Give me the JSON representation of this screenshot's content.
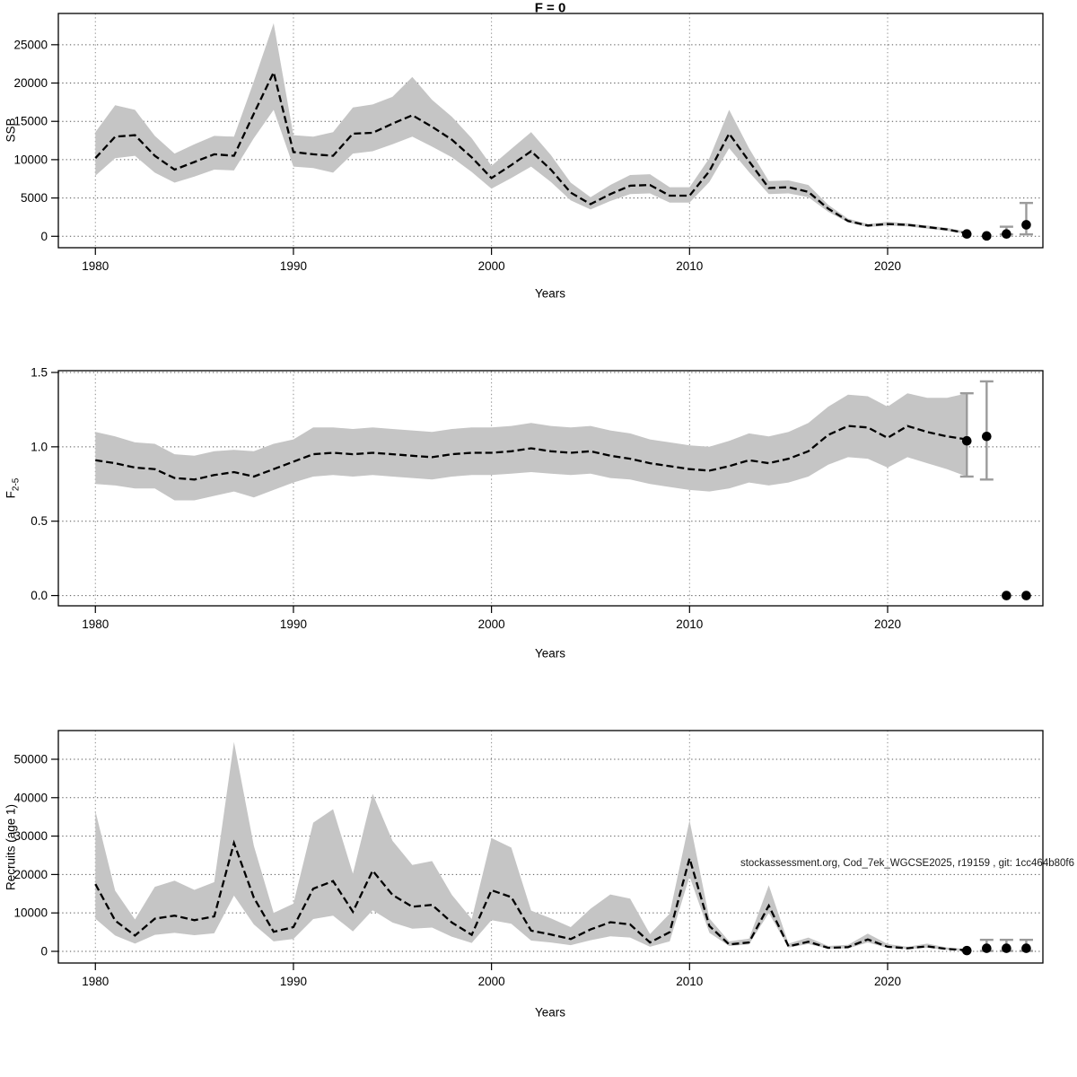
{
  "title": "F = 0",
  "watermark": "stockassessment.org, Cod_7ek_WGCSE2025, r19159 , git: 1cc464b80f6",
  "colors": {
    "band": "#c5c5c5",
    "line": "#000000",
    "grid_h": "#555555",
    "grid_v": "#888888",
    "axis": "#000000",
    "errorbar": "#9b9b9b",
    "point": "#000000"
  },
  "chart_data": [
    {
      "type": "line",
      "title": "F = 0",
      "ylabel": "SSB",
      "ylabel_sub": "",
      "xlabel": "Years",
      "xlim": [
        1978.13,
        2027.84
      ],
      "ylim": [
        -1490,
        29080
      ],
      "xticks": [
        1980,
        1990,
        2000,
        2010,
        2020
      ],
      "yticks": [
        0,
        5000,
        10000,
        15000,
        20000,
        25000
      ],
      "ytick_labels": [
        "0",
        "5000",
        "10000",
        "15000",
        "20000",
        "25000"
      ],
      "grid": true,
      "x": [
        1980,
        1981,
        1982,
        1983,
        1984,
        1985,
        1986,
        1987,
        1988,
        1989,
        1990,
        1991,
        1992,
        1993,
        1994,
        1995,
        1996,
        1997,
        1998,
        1999,
        2000,
        2001,
        2002,
        2003,
        2004,
        2005,
        2006,
        2007,
        2008,
        2009,
        2010,
        2011,
        2012,
        2013,
        2014,
        2015,
        2016,
        2017,
        2018,
        2019,
        2020,
        2021,
        2022,
        2023,
        2024
      ],
      "values": [
        10200,
        13000,
        13200,
        10500,
        8700,
        9700,
        10700,
        10500,
        16000,
        21400,
        11000,
        10700,
        10500,
        13400,
        13500,
        14700,
        15800,
        14300,
        12600,
        10300,
        7600,
        9300,
        11100,
        8700,
        5700,
        4200,
        5500,
        6600,
        6700,
        5300,
        5300,
        8500,
        13400,
        9800,
        6300,
        6400,
        5800,
        3600,
        2000,
        1400,
        1600,
        1500,
        1200,
        900,
        400
      ],
      "band_lo": [
        7900,
        10200,
        10500,
        8300,
        7000,
        7800,
        8700,
        8600,
        12800,
        16500,
        9100,
        8900,
        8300,
        10800,
        11100,
        12000,
        13000,
        11700,
        10300,
        8400,
        6200,
        7600,
        9100,
        7100,
        4700,
        3500,
        4600,
        5500,
        5600,
        4400,
        4400,
        7100,
        11500,
        8400,
        5500,
        5600,
        5100,
        3200,
        1800,
        1200,
        1400,
        1300,
        1000,
        700,
        300
      ],
      "band_hi": [
        13600,
        17100,
        16500,
        13100,
        10800,
        12000,
        13100,
        13000,
        20200,
        27800,
        13200,
        13000,
        13600,
        16800,
        17200,
        18200,
        20800,
        17800,
        15600,
        12800,
        9200,
        11400,
        13600,
        10600,
        7000,
        5100,
        6700,
        8000,
        8100,
        6400,
        6400,
        10200,
        16500,
        11500,
        7200,
        7300,
        6700,
        4100,
        2300,
        1600,
        1900,
        1700,
        1400,
        1100,
        600
      ],
      "points": {
        "x": [
          2024,
          2025,
          2026,
          2027
        ],
        "y": [
          300,
          50,
          300,
          1500
        ]
      },
      "error_bars": [
        {
          "x": 2026,
          "lo": 250,
          "hi": 1250
        },
        {
          "x": 2027,
          "lo": 250,
          "hi": 4350
        }
      ]
    },
    {
      "type": "line",
      "title": "",
      "ylabel": "F",
      "ylabel_sub": "2-5",
      "xlabel": "Years",
      "xlim": [
        1978.13,
        2027.84
      ],
      "ylim": [
        -0.069,
        1.512
      ],
      "xticks": [
        1980,
        1990,
        2000,
        2010,
        2020
      ],
      "yticks": [
        0.0,
        0.5,
        1.0,
        1.5
      ],
      "ytick_labels": [
        "0.0",
        "0.5",
        "1.0",
        "1.5"
      ],
      "grid": true,
      "x": [
        1980,
        1981,
        1982,
        1983,
        1984,
        1985,
        1986,
        1987,
        1988,
        1989,
        1990,
        1991,
        1992,
        1993,
        1994,
        1995,
        1996,
        1997,
        1998,
        1999,
        2000,
        2001,
        2002,
        2003,
        2004,
        2005,
        2006,
        2007,
        2008,
        2009,
        2010,
        2011,
        2012,
        2013,
        2014,
        2015,
        2016,
        2017,
        2018,
        2019,
        2020,
        2021,
        2022,
        2023,
        2024
      ],
      "values": [
        0.91,
        0.89,
        0.86,
        0.85,
        0.79,
        0.78,
        0.81,
        0.83,
        0.8,
        0.85,
        0.9,
        0.95,
        0.96,
        0.95,
        0.96,
        0.95,
        0.94,
        0.93,
        0.95,
        0.96,
        0.96,
        0.97,
        0.99,
        0.97,
        0.96,
        0.97,
        0.94,
        0.92,
        0.89,
        0.87,
        0.85,
        0.84,
        0.87,
        0.91,
        0.89,
        0.92,
        0.97,
        1.08,
        1.14,
        1.13,
        1.06,
        1.14,
        1.1,
        1.07,
        1.05
      ],
      "band_lo": [
        0.75,
        0.74,
        0.72,
        0.72,
        0.64,
        0.64,
        0.67,
        0.7,
        0.66,
        0.71,
        0.76,
        0.8,
        0.81,
        0.8,
        0.81,
        0.8,
        0.79,
        0.78,
        0.8,
        0.81,
        0.81,
        0.82,
        0.83,
        0.82,
        0.81,
        0.82,
        0.79,
        0.78,
        0.75,
        0.73,
        0.71,
        0.7,
        0.72,
        0.76,
        0.74,
        0.76,
        0.8,
        0.88,
        0.93,
        0.92,
        0.86,
        0.93,
        0.89,
        0.85,
        0.8
      ],
      "band_hi": [
        1.1,
        1.07,
        1.03,
        1.02,
        0.95,
        0.94,
        0.97,
        0.98,
        0.97,
        1.02,
        1.05,
        1.13,
        1.13,
        1.12,
        1.13,
        1.12,
        1.11,
        1.1,
        1.12,
        1.13,
        1.13,
        1.14,
        1.16,
        1.14,
        1.13,
        1.14,
        1.11,
        1.09,
        1.05,
        1.03,
        1.01,
        1.0,
        1.04,
        1.09,
        1.07,
        1.1,
        1.16,
        1.27,
        1.35,
        1.34,
        1.27,
        1.36,
        1.33,
        1.33,
        1.36
      ],
      "points": {
        "x": [
          2024,
          2025,
          2026,
          2027
        ],
        "y": [
          1.04,
          1.07,
          0.0,
          0.0
        ]
      },
      "error_bars": [
        {
          "x": 2024,
          "lo": 0.8,
          "hi": 1.36
        },
        {
          "x": 2025,
          "lo": 0.78,
          "hi": 1.44
        }
      ]
    },
    {
      "type": "line",
      "title": "",
      "ylabel": "Recruits (age 1)",
      "ylabel_sub": "",
      "xlabel": "Years",
      "xlim": [
        1978.13,
        2027.84
      ],
      "ylim": [
        -3040,
        57470
      ],
      "xticks": [
        1980,
        1990,
        2000,
        2010,
        2020
      ],
      "yticks": [
        0,
        10000,
        20000,
        30000,
        40000,
        50000
      ],
      "ytick_labels": [
        "0",
        "10000",
        "20000",
        "30000",
        "40000",
        "50000"
      ],
      "grid": true,
      "x": [
        1980,
        1981,
        1982,
        1983,
        1984,
        1985,
        1986,
        1987,
        1988,
        1989,
        1990,
        1991,
        1992,
        1993,
        1994,
        1995,
        1996,
        1997,
        1998,
        1999,
        2000,
        2001,
        2002,
        2003,
        2004,
        2005,
        2006,
        2007,
        2008,
        2009,
        2010,
        2011,
        2012,
        2013,
        2014,
        2015,
        2016,
        2017,
        2018,
        2019,
        2020,
        2021,
        2022,
        2023,
        2024
      ],
      "values": [
        17500,
        8000,
        4100,
        8500,
        9300,
        8100,
        9100,
        28200,
        14000,
        5100,
        6300,
        16300,
        18300,
        10300,
        21000,
        14700,
        11600,
        12100,
        7500,
        4300,
        15900,
        14100,
        5400,
        4400,
        3200,
        5700,
        7600,
        7000,
        2300,
        5000,
        24200,
        6600,
        1800,
        2300,
        11900,
        1300,
        2500,
        900,
        1100,
        3100,
        1200,
        800,
        1300,
        600,
        300
      ],
      "band_lo": [
        8500,
        4100,
        2000,
        4300,
        4800,
        4200,
        4700,
        14500,
        7000,
        2600,
        3200,
        8400,
        9300,
        5200,
        10700,
        7500,
        5900,
        6200,
        3800,
        2200,
        8100,
        7200,
        2800,
        2300,
        1600,
        2900,
        3900,
        3600,
        1200,
        2600,
        19500,
        4800,
        1400,
        1800,
        10000,
        1000,
        1900,
        700,
        800,
        2300,
        900,
        600,
        900,
        400,
        200
      ],
      "band_hi": [
        36500,
        15800,
        8300,
        16800,
        18400,
        16000,
        18000,
        54500,
        27500,
        10000,
        12400,
        33500,
        37000,
        20200,
        41000,
        28800,
        22500,
        23500,
        14700,
        8400,
        29500,
        27000,
        10600,
        8600,
        6300,
        11100,
        14800,
        13700,
        4500,
        9800,
        34100,
        8600,
        2600,
        3300,
        17200,
        2000,
        3600,
        1400,
        1700,
        4600,
        1900,
        1200,
        2000,
        1000,
        600
      ],
      "points": {
        "x": [
          2024,
          2025,
          2026,
          2027
        ],
        "y": [
          200,
          800,
          800,
          800
        ]
      },
      "error_bars": [
        {
          "x": 2025,
          "lo": 100,
          "hi": 3000
        },
        {
          "x": 2026,
          "lo": 100,
          "hi": 3000
        },
        {
          "x": 2027,
          "lo": 100,
          "hi": 3000
        }
      ]
    }
  ]
}
